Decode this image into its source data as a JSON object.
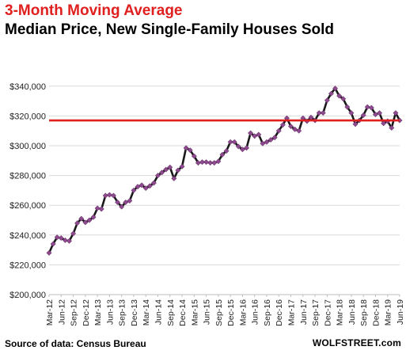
{
  "title": "3-Month Moving Average",
  "subtitle": "Median Price, New Single-Family Houses Sold",
  "source": "Source of data: Census Bureau",
  "brand": "WOLFSTREET.com",
  "colors": {
    "title": "#e0201f",
    "line": "#1a1a1a",
    "marker": "#8e4a8e",
    "reference_line": "#e0201f"
  },
  "chart_data": {
    "type": "line",
    "title": "3-Month Moving Average",
    "subtitle": "Median Price, New Single-Family Houses Sold",
    "ylim": [
      200000,
      350000
    ],
    "yticks": [
      200000,
      220000,
      240000,
      260000,
      280000,
      300000,
      320000,
      340000
    ],
    "ytick_labels": [
      "$200,000",
      "$220,000",
      "$240,000",
      "$260,000",
      "$280,000",
      "$300,000",
      "$320,000",
      "$340,000"
    ],
    "xtick_labels": [
      "Mar-12",
      "Jun-12",
      "Sep-12",
      "Dec-12",
      "Mar-13",
      "Jun-13",
      "Sep-13",
      "Dec-13",
      "Mar-14",
      "Jun-14",
      "Sep-14",
      "Dec-14",
      "Mar-15",
      "Jun-15",
      "Sep-15",
      "Dec-15",
      "Mar-16",
      "Jun-16",
      "Sep-16",
      "Dec-16",
      "Mar-17",
      "Jun-17",
      "Sep-17",
      "Dec-17",
      "Mar-18",
      "Jun-18",
      "Sep-18",
      "Dec-18",
      "Mar-19",
      "Jun-19"
    ],
    "grid": "horizontal",
    "reference_line": 317000,
    "x": [
      "Mar-12",
      "Apr-12",
      "May-12",
      "Jun-12",
      "Jul-12",
      "Aug-12",
      "Sep-12",
      "Oct-12",
      "Nov-12",
      "Dec-12",
      "Jan-13",
      "Feb-13",
      "Mar-13",
      "Apr-13",
      "May-13",
      "Jun-13",
      "Jul-13",
      "Aug-13",
      "Sep-13",
      "Oct-13",
      "Nov-13",
      "Dec-13",
      "Jan-14",
      "Feb-14",
      "Mar-14",
      "Apr-14",
      "May-14",
      "Jun-14",
      "Jul-14",
      "Aug-14",
      "Sep-14",
      "Oct-14",
      "Nov-14",
      "Dec-14",
      "Jan-15",
      "Feb-15",
      "Mar-15",
      "Apr-15",
      "May-15",
      "Jun-15",
      "Jul-15",
      "Aug-15",
      "Sep-15",
      "Oct-15",
      "Nov-15",
      "Dec-15",
      "Jan-16",
      "Feb-16",
      "Mar-16",
      "Apr-16",
      "May-16",
      "Jun-16",
      "Jul-16",
      "Aug-16",
      "Sep-16",
      "Oct-16",
      "Nov-16",
      "Dec-16",
      "Jan-17",
      "Feb-17",
      "Mar-17",
      "Apr-17",
      "May-17",
      "Jun-17",
      "Jul-17",
      "Aug-17",
      "Sep-17",
      "Oct-17",
      "Nov-17",
      "Dec-17",
      "Jan-18",
      "Feb-18",
      "Mar-18",
      "Apr-18",
      "May-18",
      "Jun-18",
      "Jul-18",
      "Aug-18",
      "Sep-18",
      "Oct-18",
      "Nov-18",
      "Dec-18",
      "Jan-19",
      "Feb-19",
      "Mar-19",
      "Apr-19",
      "May-19",
      "Jun-19"
    ],
    "values": [
      228000,
      234000,
      238500,
      238000,
      236500,
      236000,
      241000,
      248000,
      251000,
      248500,
      250000,
      252000,
      258000,
      257500,
      266500,
      267000,
      266500,
      262000,
      259000,
      262000,
      263000,
      270000,
      272500,
      273500,
      271500,
      273000,
      275000,
      280000,
      282000,
      284000,
      285500,
      278000,
      283500,
      286000,
      298500,
      297000,
      293000,
      288500,
      289000,
      289000,
      288500,
      288500,
      289500,
      294000,
      296500,
      302500,
      302500,
      299500,
      297500,
      298500,
      308500,
      306500,
      307500,
      301500,
      302500,
      304000,
      305500,
      310000,
      314000,
      318500,
      313000,
      311000,
      310000,
      318500,
      316500,
      319000,
      317000,
      322000,
      322000,
      330500,
      335000,
      338500,
      333500,
      331500,
      326000,
      322000,
      314500,
      317000,
      320500,
      326000,
      325500,
      321000,
      322000,
      315000,
      316500,
      312000,
      322000,
      317000
    ]
  }
}
